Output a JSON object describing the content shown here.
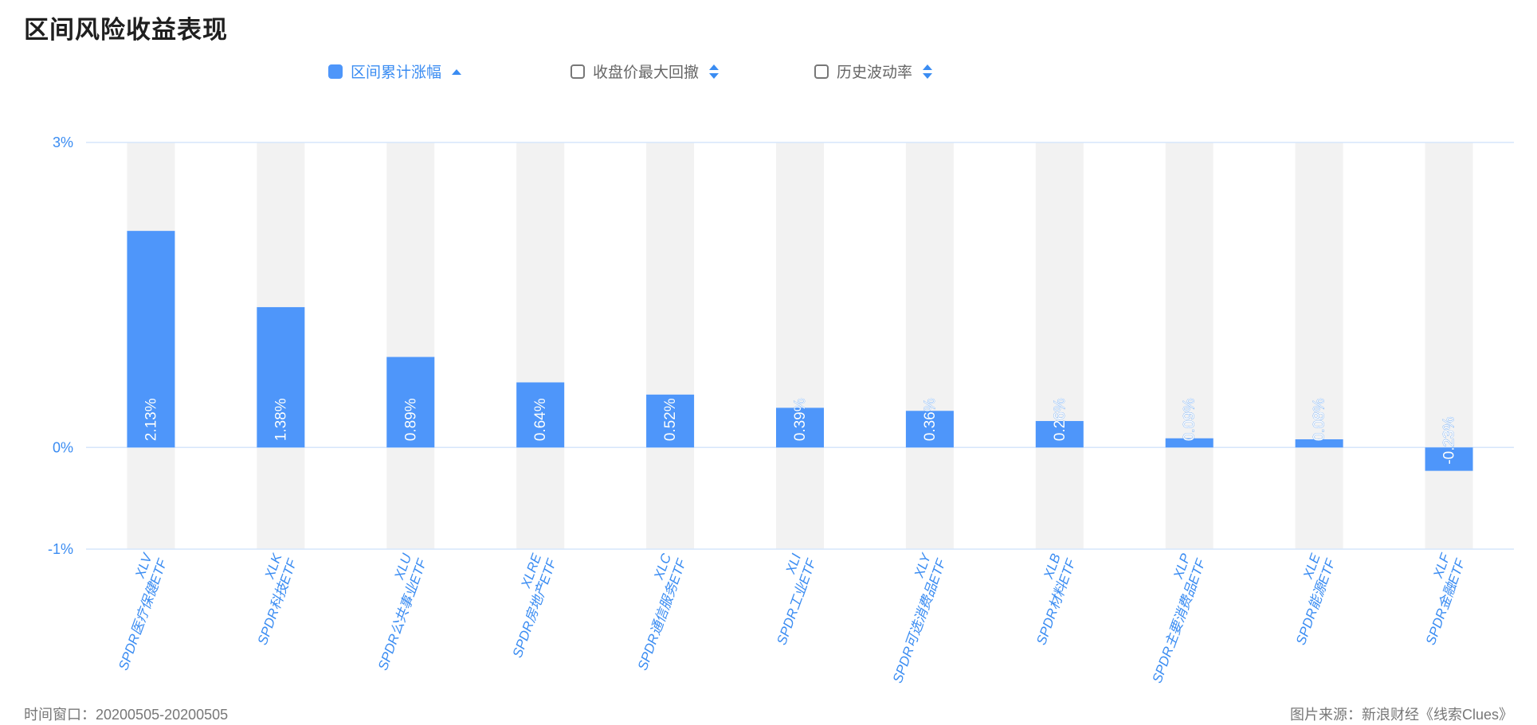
{
  "title": "区间风险收益表现",
  "legend": [
    {
      "label": "区间累计涨幅",
      "active": true,
      "sort": "up"
    },
    {
      "label": "收盘价最大回撤",
      "active": false,
      "sort": "both"
    },
    {
      "label": "历史波动率",
      "active": false,
      "sort": "both"
    }
  ],
  "colors": {
    "bar": "#4e96fa",
    "track": "#f2f2f2",
    "axis_text": "#3a8cf2",
    "grid": "#d6e6fb"
  },
  "chart_data": {
    "type": "bar",
    "title": "",
    "xlabel": "",
    "ylabel": "",
    "ylim": [
      -1,
      3
    ],
    "yticks": [
      -1,
      0,
      3
    ],
    "ytick_labels": [
      "-1%",
      "0%",
      "3%"
    ],
    "categories": [
      {
        "code": "XLV",
        "name": "SPDR医疗保健ETF"
      },
      {
        "code": "XLK",
        "name": "SPDR科技ETF"
      },
      {
        "code": "XLU",
        "name": "SPDR公共事业ETF"
      },
      {
        "code": "XLRE",
        "name": "SPDR房地产ETF"
      },
      {
        "code": "XLC",
        "name": "SPDR通信服务ETF"
      },
      {
        "code": "XLI",
        "name": "SPDR工业ETF"
      },
      {
        "code": "XLY",
        "name": "SPDR可选消费品ETF"
      },
      {
        "code": "XLB",
        "name": "SPDR材料ETF"
      },
      {
        "code": "XLP",
        "name": "SPDR主要消费品ETF"
      },
      {
        "code": "XLE",
        "name": "SPDR能源ETF"
      },
      {
        "code": "XLF",
        "name": "SPDR金融ETF"
      }
    ],
    "values": [
      2.13,
      1.38,
      0.89,
      0.64,
      0.52,
      0.39,
      0.36,
      0.26,
      0.09,
      0.08,
      -0.23
    ],
    "data_labels": [
      "2.13%",
      "1.38%",
      "0.89%",
      "0.64%",
      "0.52%",
      "0.39%",
      "0.36%",
      "0.26%",
      "0.09%",
      "0.08%",
      "-0.23%"
    ]
  },
  "footer": {
    "left": "时间窗口：20200505-20200505",
    "right": "图片来源：新浪财经《线索Clues》"
  }
}
